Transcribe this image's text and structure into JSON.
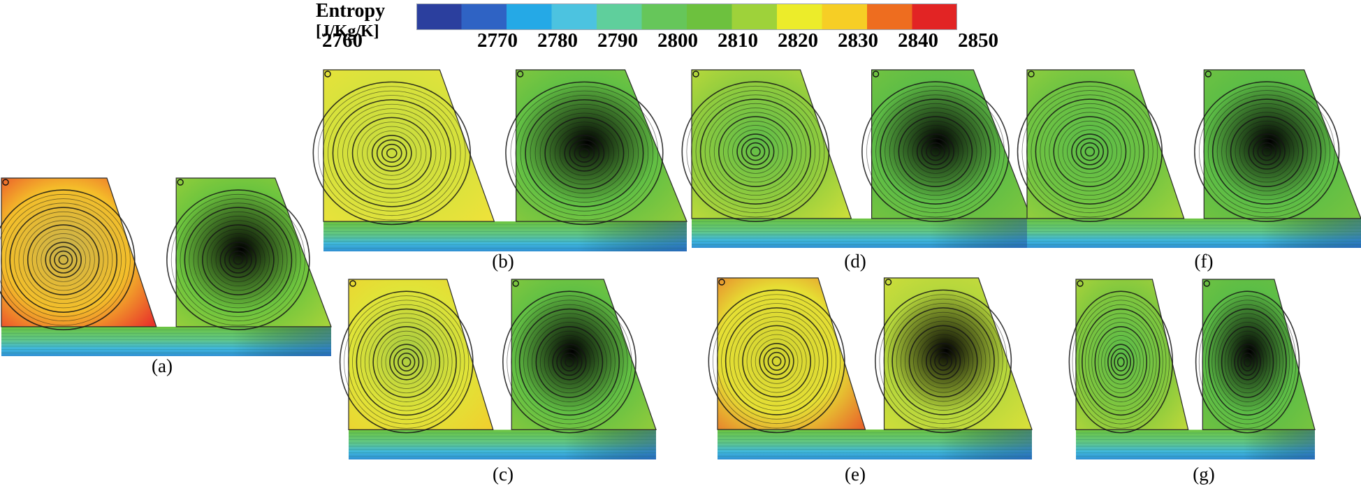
{
  "legend": {
    "title": "Entropy",
    "unit": "[J/Kg/K]",
    "ticks": [
      "2760",
      "2770",
      "2780",
      "2790",
      "2800",
      "2810",
      "2820",
      "2830",
      "2840",
      "2850"
    ],
    "tick_values": [
      2760,
      2770,
      2780,
      2790,
      2800,
      2810,
      2820,
      2830,
      2840,
      2850
    ],
    "range": [
      2760,
      2850
    ],
    "colors": [
      "#2b3f9e",
      "#2f63c4",
      "#25a9e6",
      "#4cc3e0",
      "#5fcf9c",
      "#66c65a",
      "#6dc13e",
      "#9ed23a",
      "#ecec2a",
      "#f6ce25",
      "#ee6d1f",
      "#e22424"
    ]
  },
  "panels": [
    {
      "label": "(a)",
      "left_color": "#f4bf2a",
      "left_edge": "#e8322a",
      "left_core": "#c9b24a",
      "right_color": "#6cc43e",
      "right_edge": "#a4d23a"
    },
    {
      "label": "(b)",
      "left_color": "#d8e23c",
      "left_edge": "#eee23a",
      "left_core": "#c8dc3e",
      "right_color": "#62c044",
      "right_edge": "#8fcb3c"
    },
    {
      "label": "(c)",
      "left_color": "#e0e438",
      "left_edge": "#f0d02e",
      "left_core": "#a8cc40",
      "right_color": "#62c044",
      "right_edge": "#8fcb3c"
    },
    {
      "label": "(d)",
      "left_color": "#92cd3e",
      "left_edge": "#cade3a",
      "left_core": "#5fbc48",
      "right_color": "#5ebd46",
      "right_edge": "#7cc63e"
    },
    {
      "label": "(e)",
      "left_color": "#e6e034",
      "left_edge": "#e8662a",
      "left_core": "#d2d432",
      "right_color": "#b6d73c",
      "right_edge": "#d8e03a"
    },
    {
      "label": "(f)",
      "left_color": "#70c442",
      "left_edge": "#9ed23c",
      "left_core": "#5cbc48",
      "right_color": "#5cbd46",
      "right_edge": "#76c440"
    },
    {
      "label": "(g)",
      "left_color": "#82c83e",
      "left_edge": "#bcd83a",
      "left_core": "#5cbc48",
      "right_color": "#5cbd46",
      "right_edge": "#76c440"
    }
  ]
}
